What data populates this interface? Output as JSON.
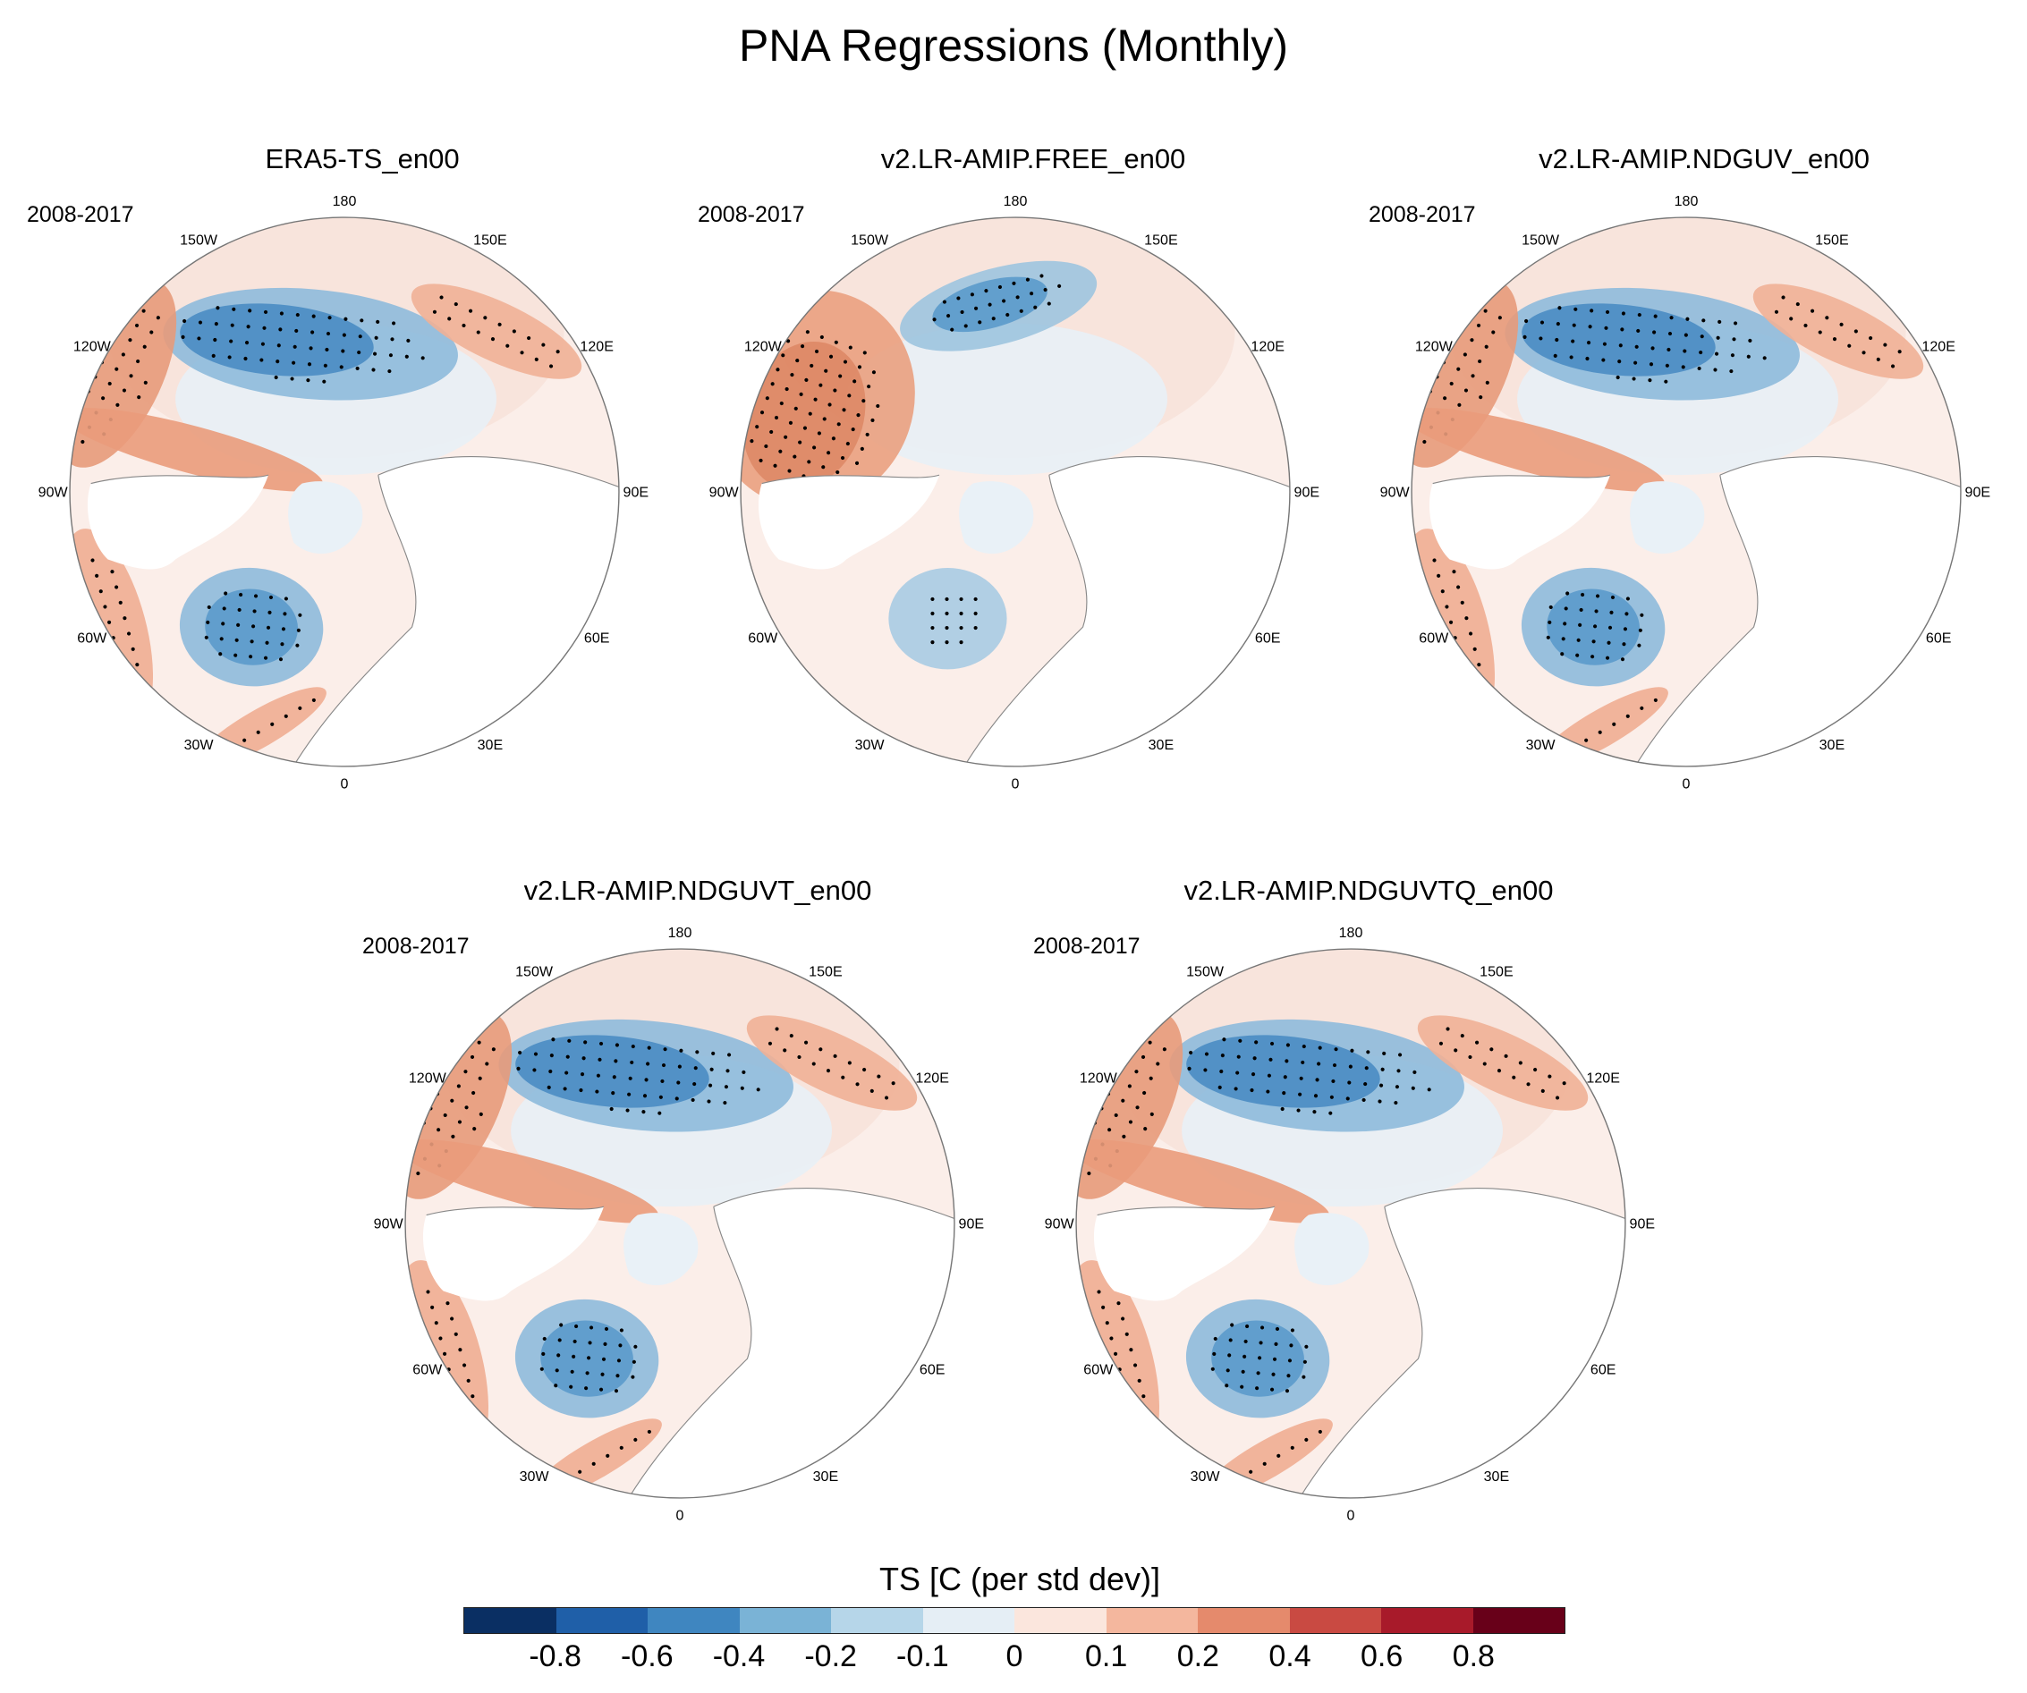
{
  "title": "PNA Regressions (Monthly)",
  "chart_data": [
    {
      "type": "heatmap",
      "projection": "polar-stereographic-north",
      "title": "ERA5-TS_en00",
      "period": "2008-2017"
    },
    {
      "type": "heatmap",
      "projection": "polar-stereographic-north",
      "title": "v2.LR-AMIP.FREE_en00",
      "period": "2008-2017"
    },
    {
      "type": "heatmap",
      "projection": "polar-stereographic-north",
      "title": "v2.LR-AMIP.NDGUV_en00",
      "period": "2008-2017"
    },
    {
      "type": "heatmap",
      "projection": "polar-stereographic-north",
      "title": "v2.LR-AMIP.NDGUVT_en00",
      "period": "2008-2017"
    },
    {
      "type": "heatmap",
      "projection": "polar-stereographic-north",
      "title": "v2.LR-AMIP.NDGUVTQ_en00",
      "period": "2008-2017"
    }
  ],
  "longitude_labels": [
    "180",
    "150E",
    "120E",
    "90E",
    "60E",
    "30E",
    "0",
    "30W",
    "60W",
    "90W",
    "120W",
    "150W"
  ],
  "colorbar": {
    "title": "TS [C (per std dev)]",
    "levels": [
      "-0.8",
      "-0.6",
      "-0.4",
      "-0.2",
      "-0.1",
      "0",
      "0.1",
      "0.2",
      "0.4",
      "0.6",
      "0.8"
    ],
    "colors": [
      "#0a2f63",
      "#1f5fa8",
      "#3f86c0",
      "#7ab3d6",
      "#b6d6e9",
      "#e5eef5",
      "#fbe6dd",
      "#f4b79e",
      "#e58a6c",
      "#c94a42",
      "#a81a2a",
      "#680019"
    ]
  }
}
